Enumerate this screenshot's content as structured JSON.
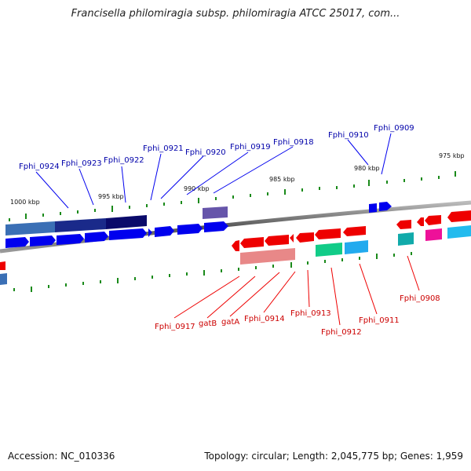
{
  "title": "Francisella philomiragia subsp. philomiragia ATCC 25017, com...",
  "footer": {
    "accession": "Accession: NC_010336",
    "summary": "Topology: circular; Length: 2,045,775 bp; Genes: 1,959"
  },
  "scale_labels": [
    "1000 kbp",
    "995 kbp",
    "990 kbp",
    "985 kbp",
    "980 kbp",
    "975 kbp"
  ],
  "top_gene_labels": [
    "Fphi_0924",
    "Fphi_0923",
    "Fphi_0922",
    "Fphi_0921",
    "Fphi_0920",
    "Fphi_0919",
    "Fphi_0918",
    "Fphi_0910",
    "Fphi_0909"
  ],
  "bottom_gene_labels": [
    "Fphi_0917",
    "gatB",
    "gatA",
    "Fphi_0914",
    "Fphi_0913",
    "Fphi_0912",
    "Fphi_0911",
    "Fphi_0908"
  ],
  "colors": {
    "forward_strand": "#0000ee",
    "reverse_strand": "#ee0000",
    "top_label": "#0000aa",
    "bottom_label": "#cc0000",
    "tick": "#1a8a1a",
    "backbone": "#888888"
  }
}
